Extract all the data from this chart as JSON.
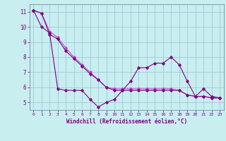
{
  "background_color": "#c8eef0",
  "grid_color": "#a0c8d8",
  "line_color": "#800080",
  "line_color2": "#cc44cc",
  "x_label": "Windchill (Refroidissement éolien,°C)",
  "xlim": [
    -0.5,
    23.5
  ],
  "ylim": [
    4.5,
    11.5
  ],
  "yticks": [
    5,
    6,
    7,
    8,
    9,
    10,
    11
  ],
  "xticks": [
    0,
    1,
    2,
    3,
    4,
    5,
    6,
    7,
    8,
    9,
    10,
    11,
    12,
    13,
    14,
    15,
    16,
    17,
    18,
    19,
    20,
    21,
    22,
    23
  ],
  "series1_x": [
    0,
    1,
    2,
    3,
    4,
    5,
    6,
    7,
    8,
    9,
    10,
    11,
    12,
    13,
    14,
    15,
    16,
    17,
    18,
    19,
    20,
    21,
    22,
    23
  ],
  "series1_y": [
    11.1,
    10.0,
    9.6,
    5.9,
    5.8,
    5.8,
    5.8,
    5.2,
    4.7,
    5.0,
    5.2,
    5.8,
    6.4,
    7.3,
    7.3,
    7.6,
    7.6,
    8.0,
    7.5,
    6.4,
    5.4,
    5.9,
    5.4,
    5.3
  ],
  "series2_x": [
    0,
    1,
    2,
    3,
    4,
    5,
    6,
    7,
    8,
    9,
    10,
    11,
    12,
    13,
    14,
    15,
    16,
    17,
    18,
    19,
    20,
    21,
    22,
    23
  ],
  "series2_y": [
    11.1,
    10.9,
    9.7,
    9.3,
    8.6,
    8.0,
    7.5,
    7.0,
    6.5,
    6.0,
    5.9,
    5.9,
    5.9,
    5.9,
    5.9,
    5.9,
    5.9,
    5.9,
    5.8,
    5.5,
    5.4,
    5.4,
    5.3,
    5.3
  ],
  "series3_x": [
    0,
    1,
    2,
    3,
    4,
    5,
    6,
    7,
    8,
    9,
    10,
    11,
    12,
    13,
    14,
    15,
    16,
    17,
    18,
    19,
    20,
    21,
    22,
    23
  ],
  "series3_y": [
    11.1,
    10.9,
    9.5,
    9.2,
    8.4,
    7.9,
    7.4,
    6.9,
    6.5,
    6.0,
    5.8,
    5.8,
    5.8,
    5.8,
    5.8,
    5.8,
    5.8,
    5.8,
    5.8,
    5.5,
    5.4,
    5.4,
    5.3,
    5.3
  ]
}
